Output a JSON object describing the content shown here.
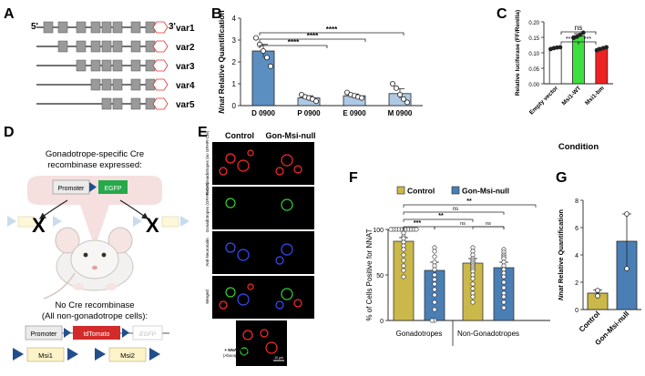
{
  "panels": {
    "a": {
      "letter": "A",
      "five_prime": "5'",
      "three_prime": "3'",
      "variants": [
        "var1",
        "var2",
        "var3",
        "var4",
        "var5"
      ]
    },
    "b": {
      "letter": "B",
      "sig_labels": [
        "****",
        "****",
        "****"
      ]
    },
    "c": {
      "letter": "C",
      "sig_labels": [
        "***",
        "***",
        "ns"
      ]
    },
    "d": {
      "letter": "D",
      "top_caption_1": "Gonadotrope-specific Cre",
      "top_caption_2": "recombinase expressed:",
      "promoter": "Promoter",
      "egfp": "EGFP",
      "bottom_caption_1": "No Cre recombinase",
      "bottom_caption_2": "(All non-gonadotrope cells):",
      "tdtomato": "tdTomato",
      "msi1": "Msi1",
      "msi2": "Msi2"
    },
    "e": {
      "letter": "E",
      "col_control": "Control",
      "col_null": "Gon-Msi-null",
      "rows": [
        "Non-Gonadotropes (no GRHR-Cre)",
        "Gonadotropes (GRHR-Cre)",
        "Anti-Neuronatin",
        "Merged"
      ],
      "absorption_1": "+ NNAT PROTEIN",
      "absorption_2": "(Absorption Control)",
      "scale": "10 µm"
    },
    "f": {
      "letter": "F",
      "sig_labels": [
        "***",
        "ns",
        "ns",
        "**",
        "ns",
        "**"
      ]
    },
    "g": {
      "letter": "G"
    }
  },
  "chart_data": [
    {
      "panel": "B",
      "type": "bar",
      "title": "",
      "xlabel": "",
      "ylabel": "Nnat Relative Quantification",
      "categories": [
        "D 0900",
        "P 0900",
        "E 0900",
        "M 0900"
      ],
      "values": [
        2.5,
        0.35,
        0.45,
        0.55
      ],
      "errors": [
        0.3,
        0.1,
        0.08,
        0.22
      ],
      "points": [
        [
          3.1,
          2.8,
          2.5,
          2.2,
          1.8
        ],
        [
          0.5,
          0.4,
          0.35,
          0.3,
          0.2
        ],
        [
          0.6,
          0.5,
          0.45,
          0.4,
          0.35
        ],
        [
          1.0,
          0.8,
          0.5,
          0.3,
          0.15
        ]
      ],
      "ylim": [
        0,
        4
      ],
      "yticks": [
        0,
        1,
        2,
        3,
        4
      ],
      "colors": [
        "#5b8fc2",
        "#afc9e4",
        "#afc9e4",
        "#afc9e4"
      ]
    },
    {
      "panel": "C",
      "type": "bar",
      "title": "",
      "xlabel": "Condition",
      "ylabel": "Relative luciferase (FF/Renilla)",
      "categories": [
        "Empty vector",
        "Msi1-WT",
        "Msi1-bm"
      ],
      "values": [
        0.115,
        0.155,
        0.113
      ],
      "errors": [
        0.003,
        0.007,
        0.004
      ],
      "points": [
        [
          0.112,
          0.115,
          0.117,
          0.118
        ],
        [
          0.148,
          0.152,
          0.158,
          0.165
        ],
        [
          0.108,
          0.112,
          0.115,
          0.118
        ]
      ],
      "ylim": [
        0,
        0.2
      ],
      "yticks": [
        0,
        0.05,
        0.1,
        0.15,
        0.2
      ],
      "ytick_labels": [
        "0.00",
        "0.05",
        "0.10",
        "0.15",
        "0.20"
      ],
      "colors": [
        "#ffffff",
        "#3ee03e",
        "#ee2222"
      ]
    },
    {
      "panel": "F",
      "type": "bar",
      "title": "",
      "ylabel": "% of Cells Positive for NNAT",
      "groups": [
        "Gonadotropes",
        "Non-Gonadotropes"
      ],
      "series": [
        {
          "name": "Control",
          "values": [
            87,
            63
          ],
          "errors": [
            4,
            5
          ]
        },
        {
          "name": "Gon-Msi-null",
          "values": [
            55,
            58
          ],
          "errors": [
            9,
            6
          ]
        }
      ],
      "ylim": [
        0,
        100
      ],
      "yticks": [
        0,
        50,
        100
      ],
      "colors": [
        "#cbb84a",
        "#4a7fb6"
      ]
    },
    {
      "panel": "G",
      "type": "bar",
      "title": "",
      "ylabel": "Nnat Relative Quantification",
      "categories": [
        "Control",
        "Gon-Msi-null"
      ],
      "values": [
        1.2,
        5.0
      ],
      "errors": [
        0.25,
        2.0
      ],
      "points": [
        [
          1.0,
          1.4
        ],
        [
          3.0,
          7.0
        ]
      ],
      "ylim": [
        0,
        8
      ],
      "yticks": [
        0,
        2,
        4,
        6,
        8
      ],
      "colors": [
        "#cbb84a",
        "#4a7fb6"
      ]
    }
  ]
}
